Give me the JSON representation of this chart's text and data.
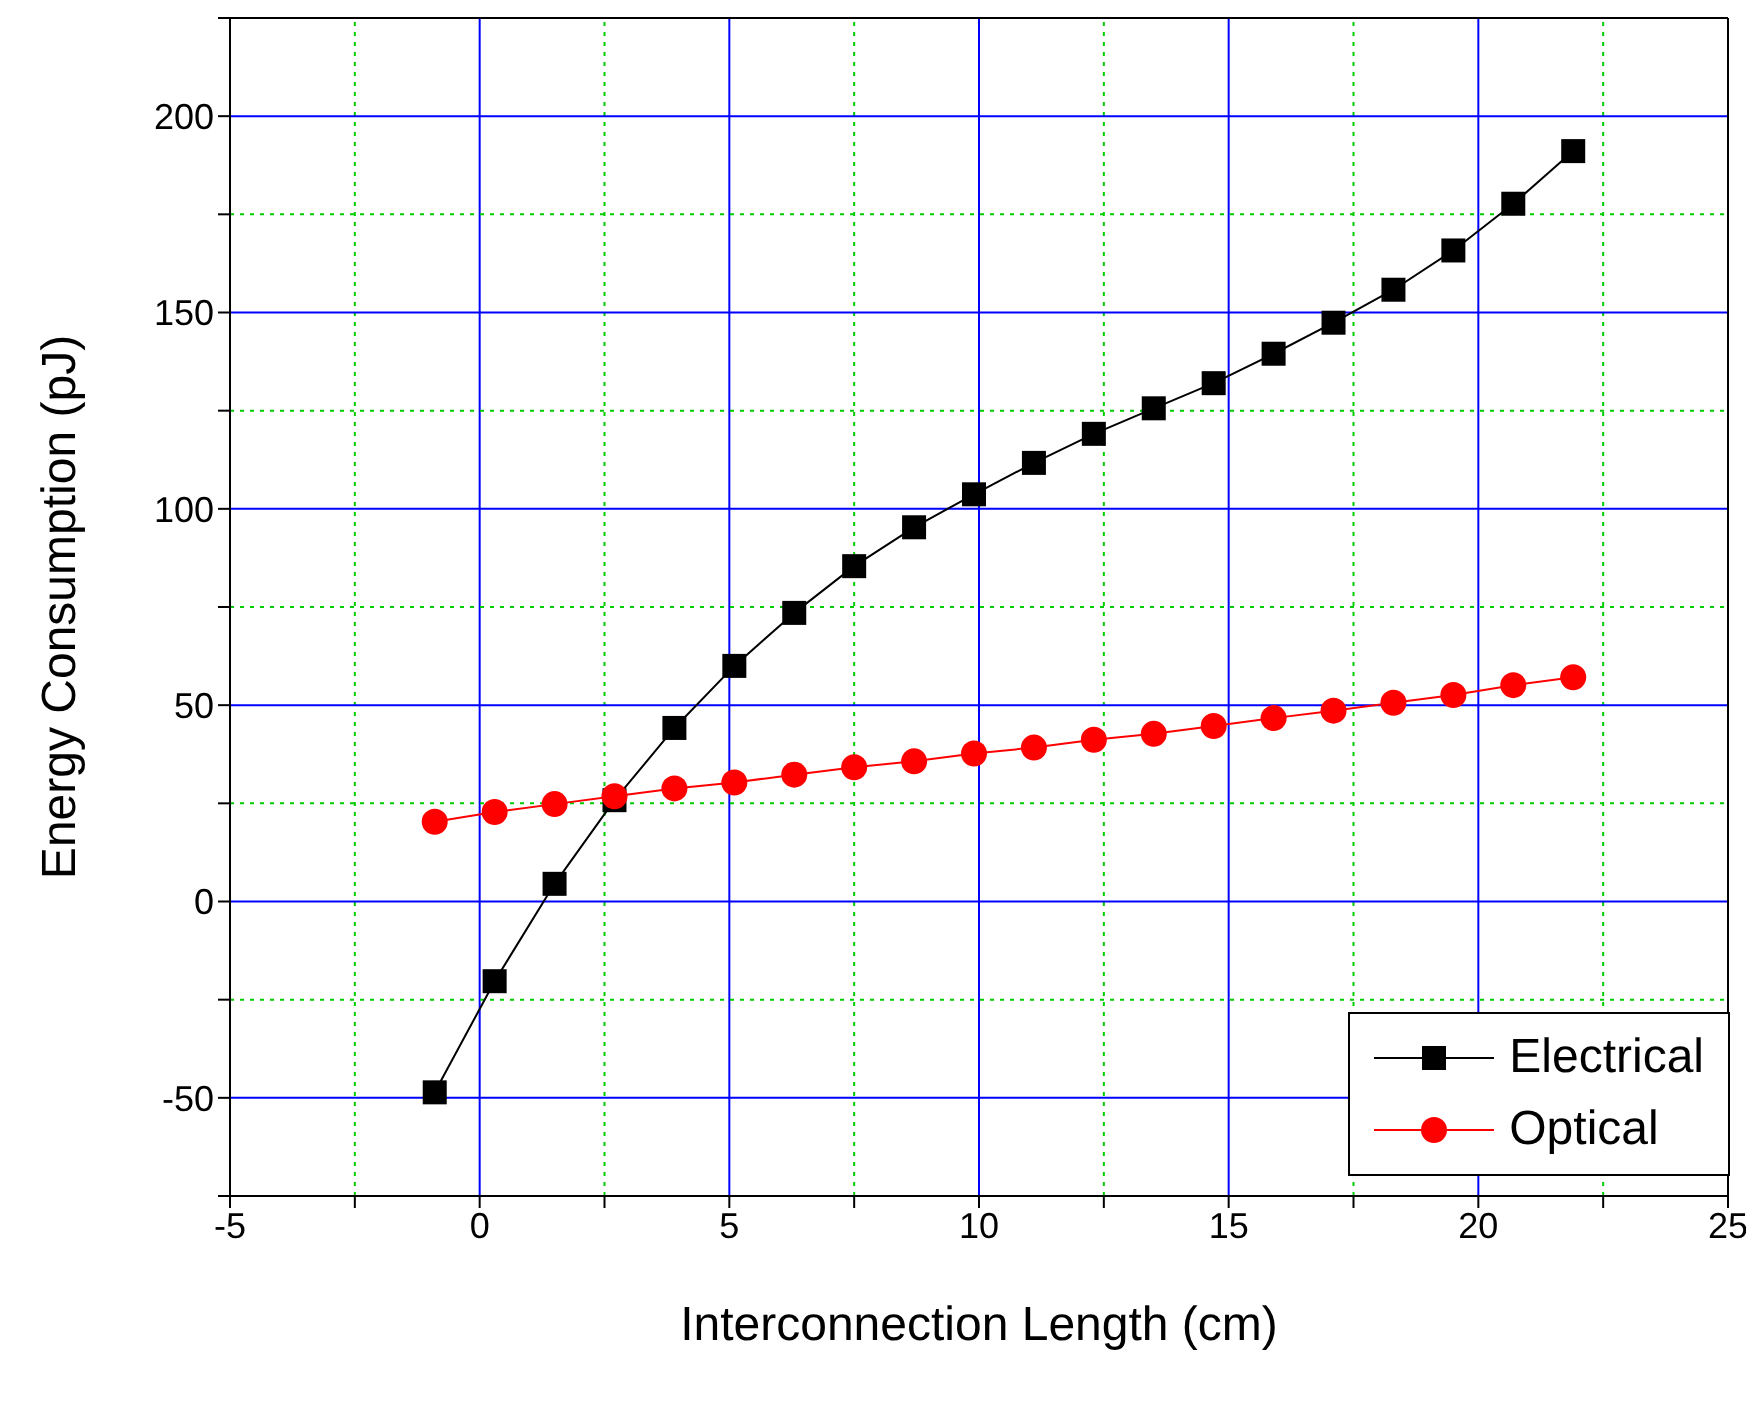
{
  "chart_data": {
    "type": "line",
    "xlabel": "Interconnection Length (cm)",
    "ylabel": "Energy Consumption (pJ)",
    "xlim": [
      -5,
      25
    ],
    "xticks": [
      -5,
      {
        "value": -2.5,
        "label": null
      },
      0,
      {
        "value": 2.5,
        "label": null
      },
      5,
      {
        "value": 7.5,
        "label": null
      },
      10,
      {
        "value": 12.5,
        "label": null
      },
      15,
      {
        "value": 17.5,
        "label": null
      },
      20,
      {
        "value": 22.5,
        "label": null
      },
      25
    ],
    "ylim": [
      -75,
      225
    ],
    "yticks": [
      {
        "value": -75,
        "label": null
      },
      -50,
      {
        "value": -25,
        "label": null
      },
      0,
      {
        "value": 25,
        "label": null
      },
      50,
      {
        "value": 75,
        "label": null
      },
      100,
      {
        "value": 125,
        "label": null
      },
      150,
      {
        "value": 175,
        "label": null
      },
      200,
      {
        "value": 225,
        "label": null
      }
    ],
    "grid": true,
    "legend": "bottom right",
    "x": [
      -0.9,
      0.3,
      1.5,
      2.7,
      3.9,
      5.1,
      6.3,
      7.5,
      8.7,
      9.9,
      11.1,
      12.3,
      13.5,
      14.7,
      15.9,
      17.1,
      18.3,
      19.5,
      20.7,
      21.9
    ],
    "series": [
      {
        "name": "Electrical",
        "color": "#000000",
        "marker": "square",
        "values": [
          -48.6,
          -20.3,
          4.5,
          25.8,
          44.2,
          60,
          73.5,
          85.4,
          95.3,
          103.7,
          111.7,
          119.1,
          125.6,
          132,
          139.5,
          147.4,
          155.8,
          165.8,
          177.7,
          191.1
        ]
      },
      {
        "name": "Optical",
        "color": "#ff0000",
        "marker": "circle",
        "values": [
          20.3,
          22.8,
          24.8,
          26.8,
          28.8,
          30.3,
          32.3,
          34.2,
          35.7,
          37.7,
          39.2,
          41.2,
          42.7,
          44.7,
          46.7,
          48.6,
          50.6,
          52.6,
          55.1,
          57.1
        ]
      }
    ]
  }
}
